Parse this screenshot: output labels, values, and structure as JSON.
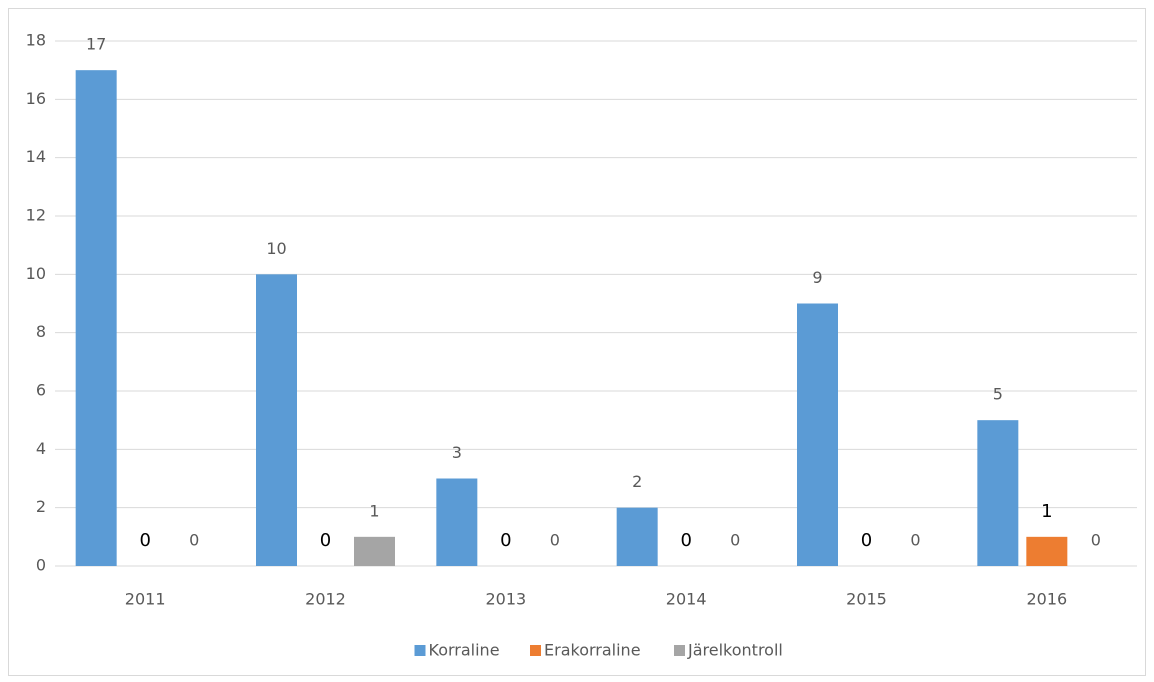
{
  "chart_data": {
    "type": "bar",
    "categories": [
      "2011",
      "2012",
      "2013",
      "2014",
      "2015",
      "2016"
    ],
    "series": [
      {
        "name": "Korraline",
        "color": "#5b9bd5",
        "values": [
          17,
          10,
          3,
          2,
          9,
          5
        ]
      },
      {
        "name": "Erakorraline",
        "color": "#ed7d31",
        "values": [
          0,
          0,
          0,
          0,
          0,
          1
        ]
      },
      {
        "name": "Järelkontroll",
        "color": "#a5a5a5",
        "values": [
          0,
          1,
          0,
          0,
          0,
          0
        ]
      }
    ],
    "ylim": [
      0,
      18
    ],
    "yticks": [
      0,
      2,
      4,
      6,
      8,
      10,
      12,
      14,
      16,
      18
    ],
    "grid": true,
    "legend": "bottom"
  }
}
